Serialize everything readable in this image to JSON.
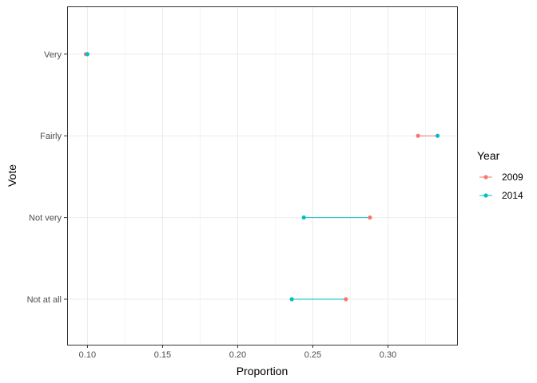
{
  "chart_data": {
    "type": "dumbbell",
    "title": "",
    "xlabel": "Proportion",
    "ylabel": "Vote",
    "xlim": [
      0.0865,
      0.346
    ],
    "x_ticks": [
      0.1,
      0.15,
      0.2,
      0.25,
      0.3
    ],
    "x_tick_labels": [
      "0.10",
      "0.15",
      "0.20",
      "0.25",
      "0.30"
    ],
    "x_minor_ticks": [
      0.125,
      0.175,
      0.225,
      0.275,
      0.325
    ],
    "categories": [
      "Not at all",
      "Not very",
      "Fairly",
      "Very"
    ],
    "grid": true,
    "legend": {
      "title": "Year",
      "position": "right"
    },
    "series": [
      {
        "name": "2009",
        "color": "#F8766D",
        "values": [
          0.272,
          0.288,
          0.32,
          0.099
        ]
      },
      {
        "name": "2014",
        "color": "#00BFC4",
        "values": [
          0.236,
          0.244,
          0.333,
          0.1
        ]
      }
    ]
  }
}
